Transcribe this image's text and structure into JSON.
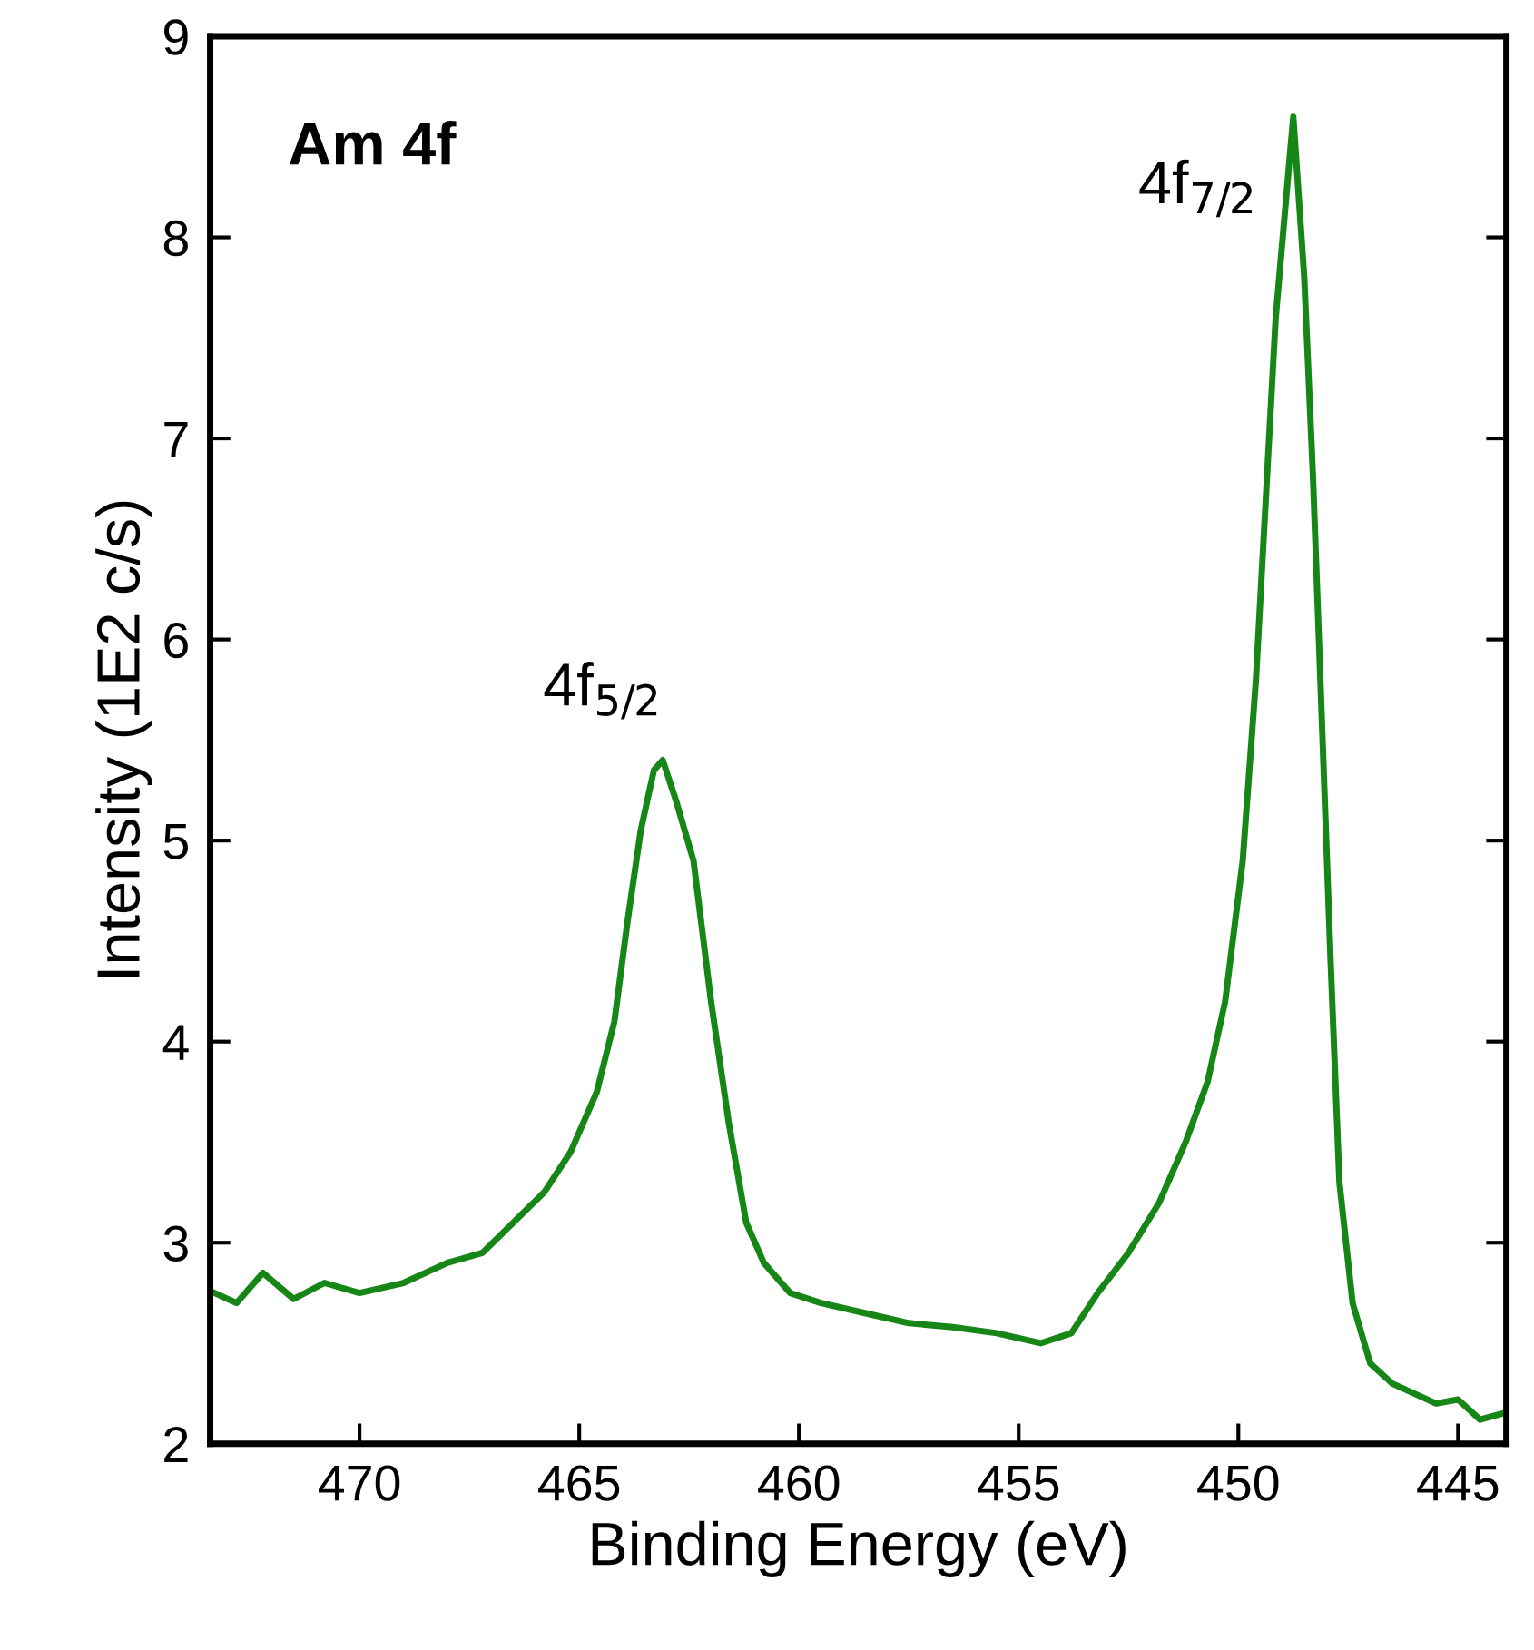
{
  "chart_data": {
    "type": "line",
    "xlabel": "Binding Energy (eV)",
    "ylabel": "Intensity (1E2 c/s)",
    "xlim": [
      473.4,
      443.9
    ],
    "xticks": [
      470,
      465,
      460,
      455,
      450,
      445
    ],
    "ylim": [
      2,
      9
    ],
    "yticks": [
      2,
      3,
      4,
      5,
      6,
      7,
      8,
      9
    ],
    "grid": false,
    "legend": false,
    "marker": "none",
    "line_style": "solid",
    "annotations": [
      "Am 4f",
      {
        "text": "4f$_{5/2}$",
        "x": 463.1,
        "y": 5.4
      },
      {
        "text": "4f$_{7/2}$",
        "x": 448.75,
        "y": 8.6
      }
    ],
    "series": [
      {
        "color": "#168716",
        "x": [
          473.3,
          472.8,
          472.2,
          471.5,
          470.8,
          470.0,
          469.0,
          468.0,
          467.2,
          466.5,
          465.8,
          465.2,
          464.6,
          464.2,
          463.9,
          463.6,
          463.3,
          463.1,
          462.8,
          462.4,
          462.0,
          461.6,
          461.2,
          460.8,
          460.2,
          459.5,
          458.5,
          457.5,
          456.5,
          455.5,
          454.5,
          453.8,
          453.2,
          452.5,
          451.8,
          451.2,
          450.7,
          450.3,
          449.9,
          449.6,
          449.35,
          449.15,
          448.95,
          448.75,
          448.5,
          448.3,
          448.1,
          447.9,
          447.7,
          447.4,
          447.0,
          446.5,
          446.0,
          445.5,
          445.0,
          444.5,
          444.0
        ],
        "values": [
          2.75,
          2.7,
          2.85,
          2.72,
          2.8,
          2.75,
          2.8,
          2.9,
          2.95,
          3.1,
          3.25,
          3.45,
          3.75,
          4.1,
          4.6,
          5.05,
          5.35,
          5.4,
          5.2,
          4.9,
          4.2,
          3.6,
          3.1,
          2.9,
          2.75,
          2.7,
          2.65,
          2.6,
          2.58,
          2.55,
          2.5,
          2.55,
          2.75,
          2.95,
          3.2,
          3.5,
          3.8,
          4.2,
          4.9,
          5.8,
          6.8,
          7.6,
          8.1,
          8.6,
          7.8,
          6.8,
          5.6,
          4.4,
          3.3,
          2.7,
          2.4,
          2.3,
          2.25,
          2.2,
          2.22,
          2.12,
          2.15
        ]
      }
    ]
  }
}
